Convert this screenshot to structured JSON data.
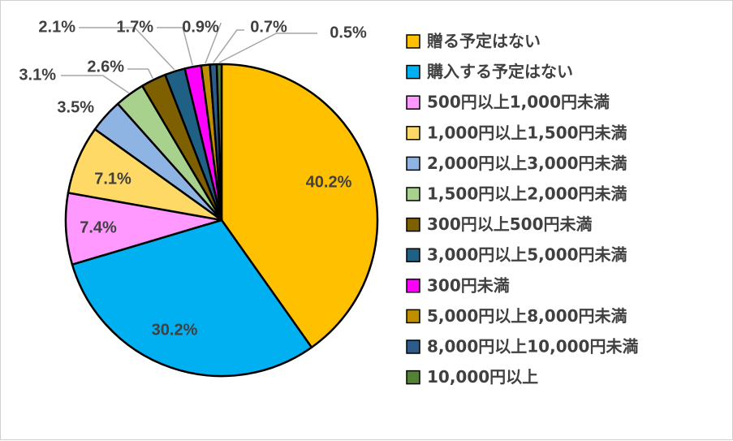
{
  "chart_data": {
    "type": "pie",
    "title": "",
    "legend_position": "right",
    "slices": [
      {
        "label": "贈る予定はない",
        "value": 40.2,
        "display": "40.2%",
        "color": "#FFC000"
      },
      {
        "label": "購入する予定はない",
        "value": 30.2,
        "display": "30.2%",
        "color": "#00B0F0"
      },
      {
        "label": "500円以上1,000円未満",
        "value": 7.4,
        "display": "7.4%",
        "color": "#FF99FF"
      },
      {
        "label": "1,000円以上1,500円未満",
        "value": 7.1,
        "display": "7.1%",
        "color": "#FFD966"
      },
      {
        "label": "2,000円以上3,000円未満",
        "value": 3.5,
        "display": "3.5%",
        "color": "#8EB4E3"
      },
      {
        "label": "1,500円以上2,000円未満",
        "value": 3.1,
        "display": "3.1%",
        "color": "#A9D18E"
      },
      {
        "label": "300円以上500円未満",
        "value": 2.6,
        "display": "2.6%",
        "color": "#7F6000"
      },
      {
        "label": "3,000円以上5,000円未満",
        "value": 2.1,
        "display": "2.1%",
        "color": "#1F6085"
      },
      {
        "label": "300円未満",
        "value": 1.7,
        "display": "1.7%",
        "color": "#FF00FF"
      },
      {
        "label": "5,000円以上8,000円未満",
        "value": 0.9,
        "display": "0.9%",
        "color": "#BF8F00"
      },
      {
        "label": "8,000円以上10,000円未満",
        "value": 0.7,
        "display": "0.7%",
        "color": "#2E5C8A"
      },
      {
        "label": "10,000円以上",
        "value": 0.5,
        "display": "0.5%",
        "color": "#548235"
      }
    ]
  }
}
